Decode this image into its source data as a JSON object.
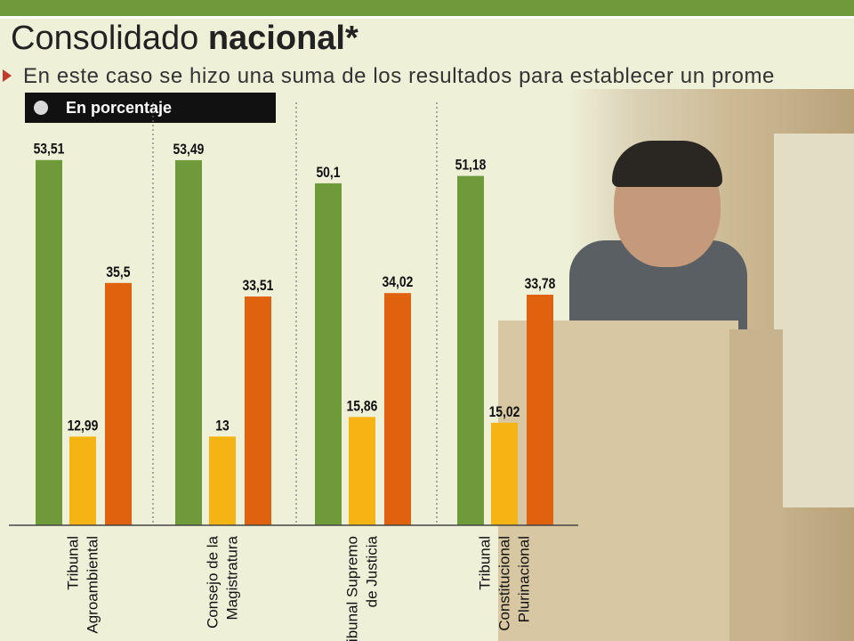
{
  "header": {
    "title_regular": "Consolidado",
    "title_bold": "nacional*",
    "subtitle": "En este caso se hizo una suma de los resultados para establecer un prome"
  },
  "legend": {
    "label": "En porcentaje"
  },
  "colors": {
    "green": "#6f9a3a",
    "yellow": "#f6b414",
    "orange": "#e0620f",
    "header_bar": "#6f9a3a"
  },
  "chart_data": {
    "type": "bar",
    "categories": [
      [
        "Tribunal",
        "Agroambiental"
      ],
      [
        "Consejo de la",
        "Magistratura"
      ],
      [
        "Tribunal Supremo",
        "de Justicia"
      ],
      [
        "Tribunal",
        "Constitucional",
        "Plurinacional"
      ]
    ],
    "series": [
      {
        "values": [
          53.51,
          53.49,
          50.1,
          51.18
        ],
        "color": "#6f9a3a"
      },
      {
        "values": [
          12.99,
          13,
          15.86,
          15.02
        ],
        "color": "#f6b414"
      },
      {
        "values": [
          35.5,
          33.51,
          34.02,
          33.78
        ],
        "color": "#e0620f"
      }
    ],
    "labels": [
      [
        "53,51",
        "12,99",
        "35,5"
      ],
      [
        "53,49",
        "13",
        "33,51"
      ],
      [
        "50,1",
        "15,86",
        "34,02"
      ],
      [
        "51,18",
        "15,02",
        "33,78"
      ]
    ],
    "ylim": [
      0,
      60
    ],
    "grid": false,
    "legend_position": "top-left"
  }
}
